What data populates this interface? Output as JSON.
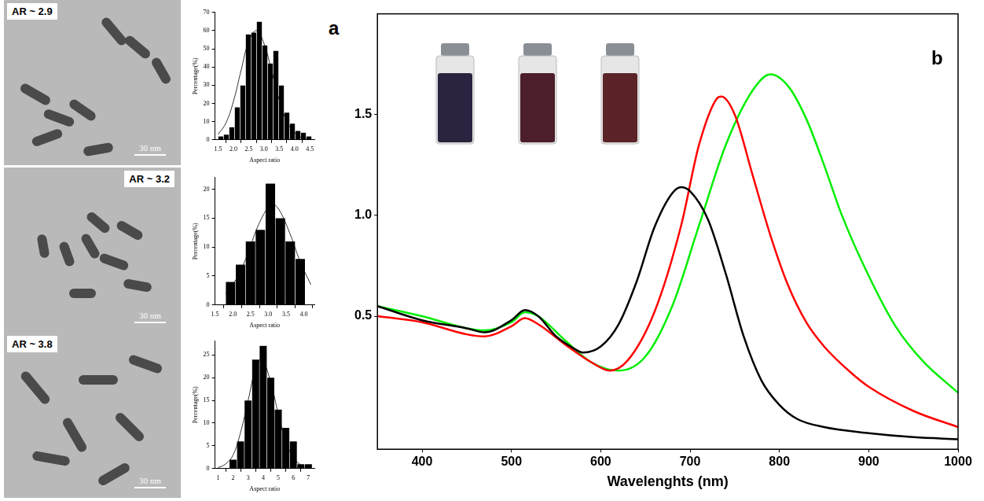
{
  "panel_labels": [
    "a",
    "b"
  ],
  "tem_images": [
    {
      "label": "AR ~ 2.9",
      "scale_bar": "30 nm"
    },
    {
      "label": "AR ~ 3.2",
      "scale_bar": "30 nm"
    },
    {
      "label": "AR ~ 3.8",
      "scale_bar": "30 nm"
    }
  ],
  "chart_data": [
    {
      "type": "histogram",
      "x_label": "Aspect ratio",
      "y_label": "Percentage(%)",
      "color": "#000000",
      "grid": false,
      "bins": [
        1.5,
        1.68,
        1.86,
        2.04,
        2.22,
        2.4,
        2.58,
        2.76,
        2.94,
        3.12,
        3.3,
        3.48,
        3.66,
        3.84,
        4.02,
        4.2,
        4.38,
        4.56
      ],
      "values": [
        2,
        3,
        7,
        18,
        30,
        58,
        59,
        65,
        52,
        42,
        49,
        30,
        15,
        9,
        5,
        4,
        2
      ],
      "fit": {
        "x": [
          1.5,
          1.75,
          2.0,
          2.25,
          2.5,
          2.75,
          3.0,
          3.25,
          3.5,
          3.75,
          4.0,
          4.25,
          4.5
        ],
        "values": [
          3,
          9,
          21,
          38,
          54,
          60,
          53,
          38,
          22,
          10,
          4,
          1,
          0
        ],
        "color": "#000000"
      },
      "xlim": [
        1.4,
        4.65
      ],
      "xticks": [
        1.5,
        {
          "value": 2,
          "label": "2.0"
        },
        2.5,
        {
          "value": 3,
          "label": "3.0"
        },
        3.5,
        {
          "value": 4,
          "label": "4.0"
        },
        4.5
      ],
      "ylim": [
        0,
        70
      ],
      "yticks": [
        0,
        10,
        20,
        30,
        40,
        50,
        60,
        70
      ]
    },
    {
      "type": "histogram",
      "x_label": "Aspect ratio",
      "y_label": "Percentage(%)",
      "color": "#000000",
      "grid": false,
      "bins": [
        1.8,
        2.08,
        2.36,
        2.64,
        2.92,
        3.2,
        3.48,
        3.76,
        4.04
      ],
      "values": [
        4,
        7,
        11,
        13,
        21,
        15,
        11,
        8
      ],
      "fit": {
        "x": [
          1.8,
          2.1,
          2.4,
          2.7,
          3.0,
          3.1,
          3.3,
          3.6,
          3.9,
          4.2
        ],
        "values": [
          2,
          4.5,
          8.5,
          13.5,
          17,
          17.5,
          16.5,
          12.5,
          7.5,
          3.5
        ],
        "color": "#000000"
      },
      "xlim": [
        1.5,
        4.3
      ],
      "xticks": [
        1.5,
        {
          "value": 2,
          "label": "2.0"
        },
        2.5,
        {
          "value": 3,
          "label": "3.0"
        },
        3.5,
        {
          "value": 4,
          "label": "4.0"
        }
      ],
      "ylim": [
        0,
        22
      ],
      "yticks": [
        0,
        5,
        10,
        15,
        20
      ]
    },
    {
      "type": "histogram",
      "x_label": "Aspect ratio",
      "y_label": "Percentage(%)",
      "color": "#000000",
      "grid": false,
      "bins": [
        1.75,
        2.25,
        2.75,
        3.25,
        3.75,
        4.25,
        4.75,
        5.25,
        5.75,
        6.25,
        6.75,
        7.25
      ],
      "values": [
        2,
        6,
        15,
        24,
        27,
        20,
        13,
        9,
        6,
        1,
        1
      ],
      "fit": {
        "x": [
          1,
          1.5,
          2,
          2.5,
          3,
          3.5,
          3.9,
          4.5,
          5,
          5.5,
          6,
          6.5,
          7
        ],
        "values": [
          0.2,
          1,
          3,
          8,
          15,
          22,
          24,
          19,
          12,
          6,
          2.5,
          0.8,
          0.2
        ],
        "color": "#000000"
      },
      "xlim": [
        0.8,
        7.4
      ],
      "xticks": [
        1,
        2,
        3,
        4,
        5,
        6,
        7
      ],
      "ylim": [
        0,
        28
      ],
      "yticks": [
        0,
        5,
        10,
        15,
        20,
        25
      ]
    },
    {
      "type": "line",
      "x_label": "Wavelenghts (nm)",
      "grid": false,
      "xlim": [
        350,
        1000
      ],
      "xticks": [
        400,
        500,
        600,
        700,
        800,
        900,
        1000
      ],
      "ylim": [
        -0.16,
        2.0
      ],
      "yticks": [
        0.5,
        {
          "value": 1,
          "label": "1.0"
        },
        1.5
      ],
      "series": [
        {
          "color": "#000000",
          "x": [
            350,
            400,
            450,
            470,
            500,
            515,
            530,
            550,
            570,
            580,
            600,
            620,
            640,
            660,
            680,
            690,
            700,
            720,
            740,
            760,
            780,
            800,
            820,
            850,
            900,
            950,
            1000
          ],
          "values": [
            0.55,
            0.48,
            0.44,
            0.42,
            0.48,
            0.53,
            0.5,
            0.4,
            0.34,
            0.32,
            0.35,
            0.46,
            0.67,
            0.94,
            1.11,
            1.14,
            1.12,
            0.98,
            0.71,
            0.4,
            0.18,
            0.06,
            -0.01,
            -0.05,
            -0.08,
            -0.1,
            -0.11
          ]
        },
        {
          "color": "#ff0000",
          "x": [
            350,
            400,
            450,
            470,
            500,
            515,
            530,
            560,
            590,
            610,
            630,
            660,
            690,
            710,
            730,
            735,
            750,
            770,
            790,
            810,
            830,
            850,
            880,
            900,
            950,
            1000
          ],
          "values": [
            0.5,
            0.47,
            0.41,
            0.4,
            0.45,
            0.49,
            0.46,
            0.36,
            0.27,
            0.23,
            0.28,
            0.52,
            0.95,
            1.35,
            1.58,
            1.59,
            1.5,
            1.2,
            0.9,
            0.65,
            0.47,
            0.35,
            0.22,
            0.15,
            0.03,
            -0.05
          ]
        },
        {
          "color": "#00ee00",
          "x": [
            350,
            400,
            450,
            470,
            500,
            515,
            530,
            560,
            590,
            620,
            650,
            680,
            710,
            740,
            770,
            790,
            810,
            830,
            850,
            870,
            900,
            930,
            960,
            1000
          ],
          "values": [
            0.55,
            0.5,
            0.44,
            0.43,
            0.47,
            0.52,
            0.5,
            0.38,
            0.27,
            0.23,
            0.3,
            0.55,
            0.95,
            1.35,
            1.62,
            1.7,
            1.64,
            1.48,
            1.25,
            1.0,
            0.7,
            0.45,
            0.28,
            0.12
          ]
        }
      ]
    }
  ]
}
